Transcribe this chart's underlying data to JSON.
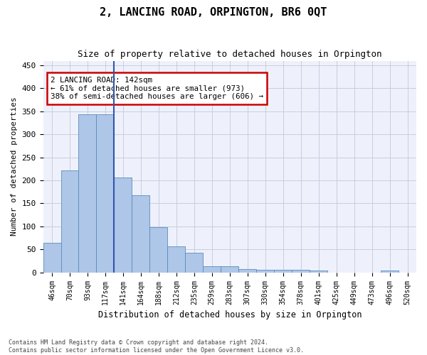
{
  "title": "2, LANCING ROAD, ORPINGTON, BR6 0QT",
  "subtitle": "Size of property relative to detached houses in Orpington",
  "xlabel": "Distribution of detached houses by size in Orpington",
  "ylabel": "Number of detached properties",
  "bins": [
    "46sqm",
    "70sqm",
    "93sqm",
    "117sqm",
    "141sqm",
    "164sqm",
    "188sqm",
    "212sqm",
    "235sqm",
    "259sqm",
    "283sqm",
    "307sqm",
    "330sqm",
    "354sqm",
    "378sqm",
    "401sqm",
    "425sqm",
    "449sqm",
    "473sqm",
    "496sqm",
    "520sqm"
  ],
  "bar_values": [
    65,
    222,
    343,
    343,
    207,
    168,
    99,
    56,
    42,
    13,
    13,
    8,
    6,
    6,
    5,
    4,
    0,
    0,
    0,
    4,
    0
  ],
  "bar_color": "#aec6e8",
  "bar_edge_color": "#5b8db8",
  "vline_x_index": 4,
  "vline_color": "#3355aa",
  "annotation_text": "2 LANCING ROAD: 142sqm\n← 61% of detached houses are smaller (973)\n38% of semi-detached houses are larger (606) →",
  "annotation_box_color": "#ffffff",
  "annotation_box_edge_color": "#cc0000",
  "ylim": [
    0,
    460
  ],
  "yticks": [
    0,
    50,
    100,
    150,
    200,
    250,
    300,
    350,
    400,
    450
  ],
  "bg_color": "#eef1fb",
  "grid_color": "#c8cde0",
  "footer_line1": "Contains HM Land Registry data © Crown copyright and database right 2024.",
  "footer_line2": "Contains public sector information licensed under the Open Government Licence v3.0."
}
